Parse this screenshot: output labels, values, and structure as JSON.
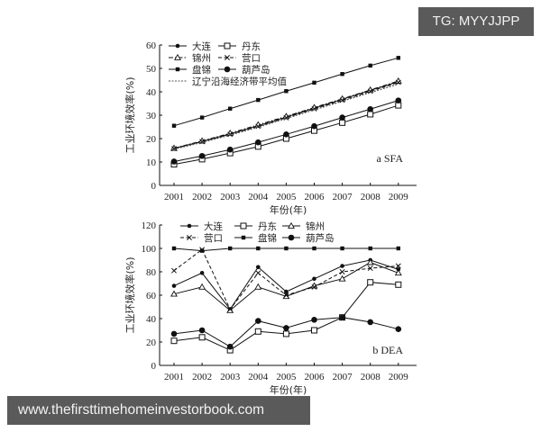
{
  "watermarks": {
    "top_right": "TG: MYYJJPP",
    "bottom_left": "www.thefirsttimehomeinvestorbook.com"
  },
  "chart_data": [
    {
      "type": "line",
      "panel_label": "a SFA",
      "title": "",
      "xlabel": "年份(年)",
      "ylabel": "工业环境效率(%)",
      "x": [
        "2001",
        "2002",
        "2003",
        "2004",
        "2005",
        "2006",
        "2007",
        "2008",
        "2009"
      ],
      "ylim": [
        0,
        60
      ],
      "yticks": [
        0,
        10,
        20,
        30,
        40,
        50,
        60
      ],
      "grid": false,
      "legend_position": "top-left inside",
      "series": [
        {
          "name": "大连",
          "marker": "small-filled-diamond",
          "dash": "solid",
          "values": [
            15.8,
            18.8,
            22.0,
            25.5,
            29.2,
            33.0,
            36.8,
            40.6,
            44.3
          ]
        },
        {
          "name": "丹东",
          "marker": "open-square",
          "dash": "solid",
          "values": [
            9.0,
            11.2,
            13.8,
            16.6,
            20.0,
            23.4,
            26.8,
            30.4,
            34.2
          ]
        },
        {
          "name": "锦州",
          "marker": "open-triangle",
          "dash": "dashdot",
          "values": [
            15.9,
            19.0,
            22.3,
            25.9,
            29.5,
            33.3,
            37.0,
            40.8,
            44.6
          ]
        },
        {
          "name": "营口",
          "marker": "x",
          "dash": "dashed",
          "values": [
            15.7,
            18.7,
            21.8,
            25.2,
            28.9,
            32.7,
            36.4,
            40.2,
            44.0
          ]
        },
        {
          "name": "盘锦",
          "marker": "small-filled-square",
          "dash": "solid",
          "values": [
            25.5,
            29.0,
            32.8,
            36.5,
            40.3,
            43.9,
            47.6,
            51.2,
            54.5
          ]
        },
        {
          "name": "葫芦岛",
          "marker": "filled-circle",
          "dash": "solid",
          "values": [
            10.2,
            12.6,
            15.3,
            18.4,
            21.8,
            25.3,
            29.0,
            32.6,
            36.3
          ]
        },
        {
          "name": "辽宁沿海经济带平均值",
          "marker": "none",
          "dash": "dotted",
          "values": [
            15.5,
            18.4,
            21.5,
            24.9,
            28.6,
            32.3,
            36.0,
            39.7,
            43.3
          ]
        }
      ]
    },
    {
      "type": "line",
      "panel_label": "b DEA",
      "title": "",
      "xlabel": "年份(年)",
      "ylabel": "工业环境效率(%)",
      "x": [
        "2001",
        "2002",
        "2003",
        "2004",
        "2005",
        "2006",
        "2007",
        "2008",
        "2009"
      ],
      "ylim": [
        0,
        120
      ],
      "yticks": [
        0,
        20,
        40,
        60,
        80,
        100,
        120
      ],
      "grid": false,
      "legend_position": "top inside",
      "series": [
        {
          "name": "大连",
          "marker": "small-filled-diamond",
          "dash": "solid",
          "values": [
            68,
            79,
            48,
            84,
            63,
            74,
            85,
            90,
            82
          ]
        },
        {
          "name": "丹东",
          "marker": "open-square",
          "dash": "solid",
          "values": [
            21,
            24,
            13,
            29,
            27,
            30,
            41,
            71,
            69
          ]
        },
        {
          "name": "锦州",
          "marker": "open-triangle",
          "dash": "solid",
          "values": [
            61,
            67,
            47,
            67,
            59,
            68,
            74,
            88,
            79
          ]
        },
        {
          "name": "营口",
          "marker": "x",
          "dash": "dashed",
          "values": [
            81,
            99,
            48,
            79,
            60,
            67,
            80,
            83,
            85
          ]
        },
        {
          "name": "盘锦",
          "marker": "small-filled-square",
          "dash": "solid",
          "values": [
            100,
            98,
            100,
            100,
            100,
            100,
            100,
            100,
            100
          ]
        },
        {
          "name": "葫芦岛",
          "marker": "filled-circle",
          "dash": "solid",
          "values": [
            27,
            30,
            16,
            38,
            32,
            39,
            41,
            37,
            31
          ]
        }
      ]
    }
  ]
}
